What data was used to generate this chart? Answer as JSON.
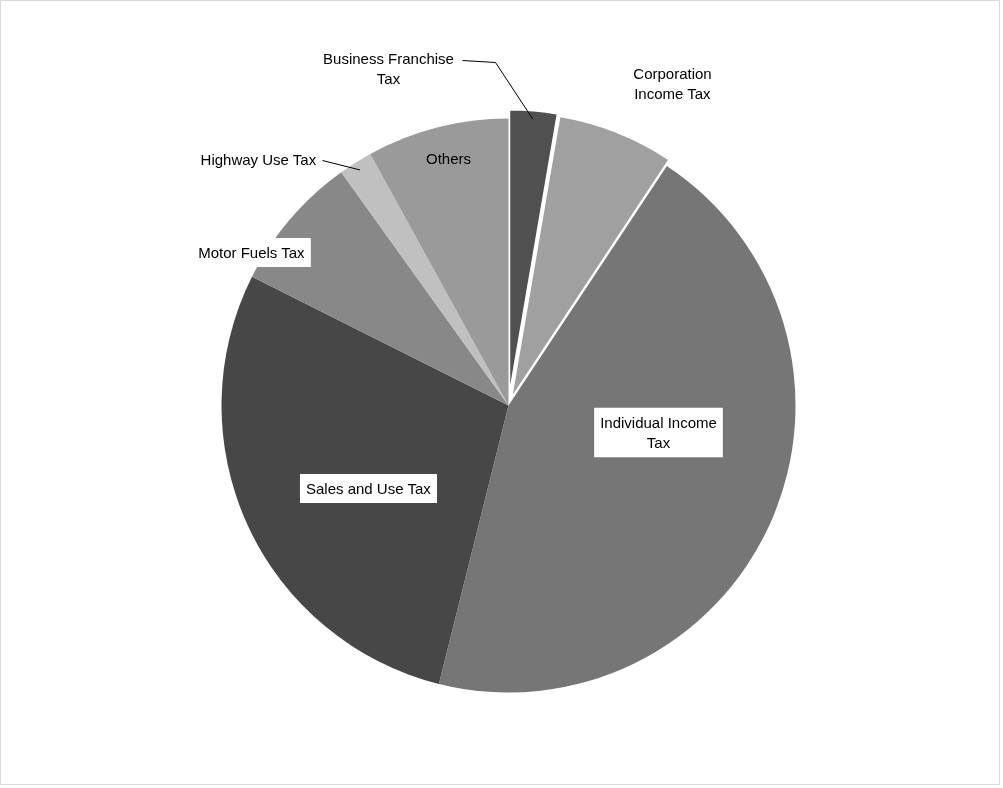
{
  "chart_data": {
    "type": "pie",
    "categories": [
      "Business Franchise Tax",
      "Corporation Income Tax",
      "Individual Income Tax",
      "Sales and Use Tax",
      "Motor Fuels Tax",
      "Highway Use Tax",
      "Others"
    ],
    "values": [
      2.7,
      6.6,
      44.6,
      28.5,
      7.7,
      1.9,
      8.0
    ],
    "colors": [
      "#505050",
      "#a0a0a0",
      "#767676",
      "#474747",
      "#888888",
      "#c0c0c0",
      "#9a9a9a"
    ]
  }
}
